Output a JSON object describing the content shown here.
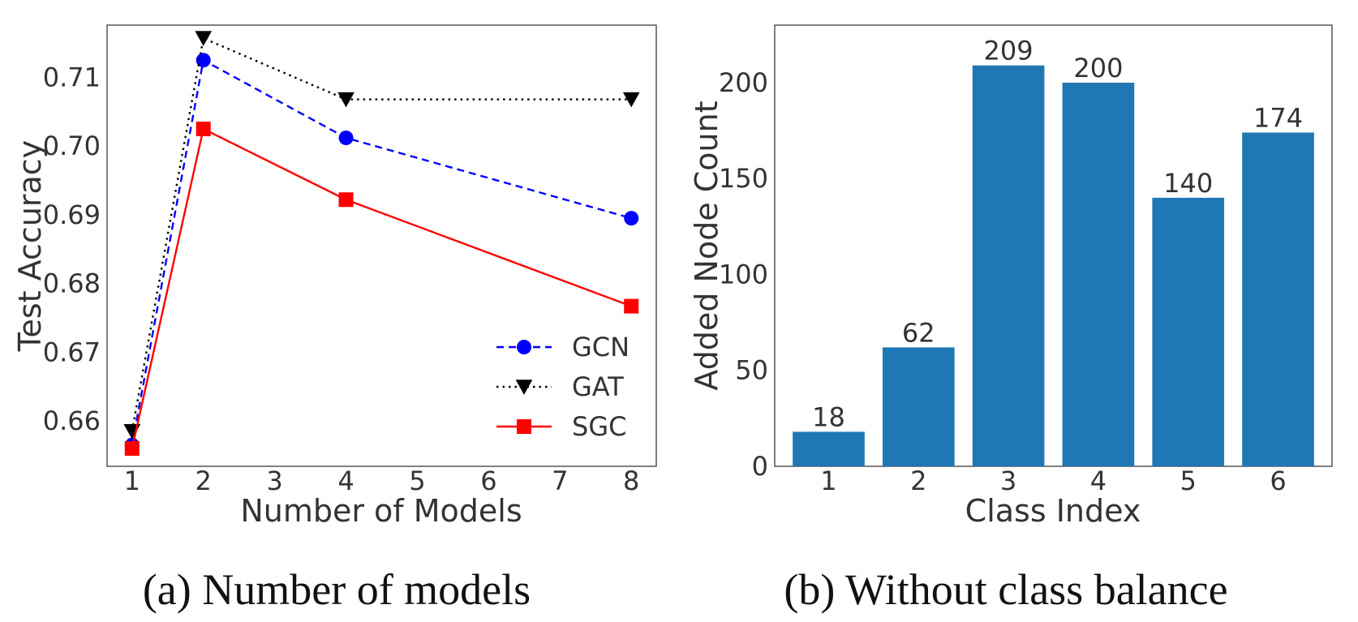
{
  "chart_data": [
    {
      "type": "line",
      "caption": "(a) Number of models",
      "xlabel": "Number of Models",
      "ylabel": "Test Accuracy",
      "x_ticks": [
        1,
        2,
        3,
        4,
        5,
        6,
        7,
        8
      ],
      "xlim": [
        0.65,
        8.35
      ],
      "ylim": [
        0.6534,
        0.7176
      ],
      "y_ticks": [
        0.66,
        0.67,
        0.68,
        0.69,
        0.7,
        0.71
      ],
      "y_tick_labels": [
        "0.66",
        "0.67",
        "0.68",
        "0.69",
        "0.70",
        "0.71"
      ],
      "x": [
        1,
        2,
        4,
        8
      ],
      "legend_position": "lower-right",
      "series": [
        {
          "name": "GCN",
          "values": [
            0.6565,
            0.7125,
            0.7012,
            0.6895
          ],
          "color": "#0000ff",
          "dash": "dashed",
          "marker": "circle"
        },
        {
          "name": "GAT",
          "values": [
            0.6585,
            0.7157,
            0.7068,
            0.7068
          ],
          "color": "#000000",
          "dash": "dotted",
          "marker": "triangle-down"
        },
        {
          "name": "SGC",
          "values": [
            0.656,
            0.7025,
            0.6922,
            0.6767
          ],
          "color": "#ff0000",
          "dash": "solid",
          "marker": "square"
        }
      ],
      "grid": false
    },
    {
      "type": "bar",
      "caption": "(b) Without class balance",
      "xlabel": "Class Index",
      "ylabel": "Added Node Count",
      "categories": [
        "1",
        "2",
        "3",
        "4",
        "5",
        "6"
      ],
      "values": [
        18,
        62,
        209,
        200,
        140,
        174
      ],
      "value_labels": [
        "18",
        "62",
        "209",
        "200",
        "140",
        "174"
      ],
      "ylim": [
        0,
        230
      ],
      "y_ticks": [
        0,
        50,
        100,
        150,
        200
      ],
      "y_tick_labels": [
        "0",
        "50",
        "100",
        "150",
        "200"
      ],
      "bar_color": "#1f77b4",
      "grid": false
    }
  ]
}
